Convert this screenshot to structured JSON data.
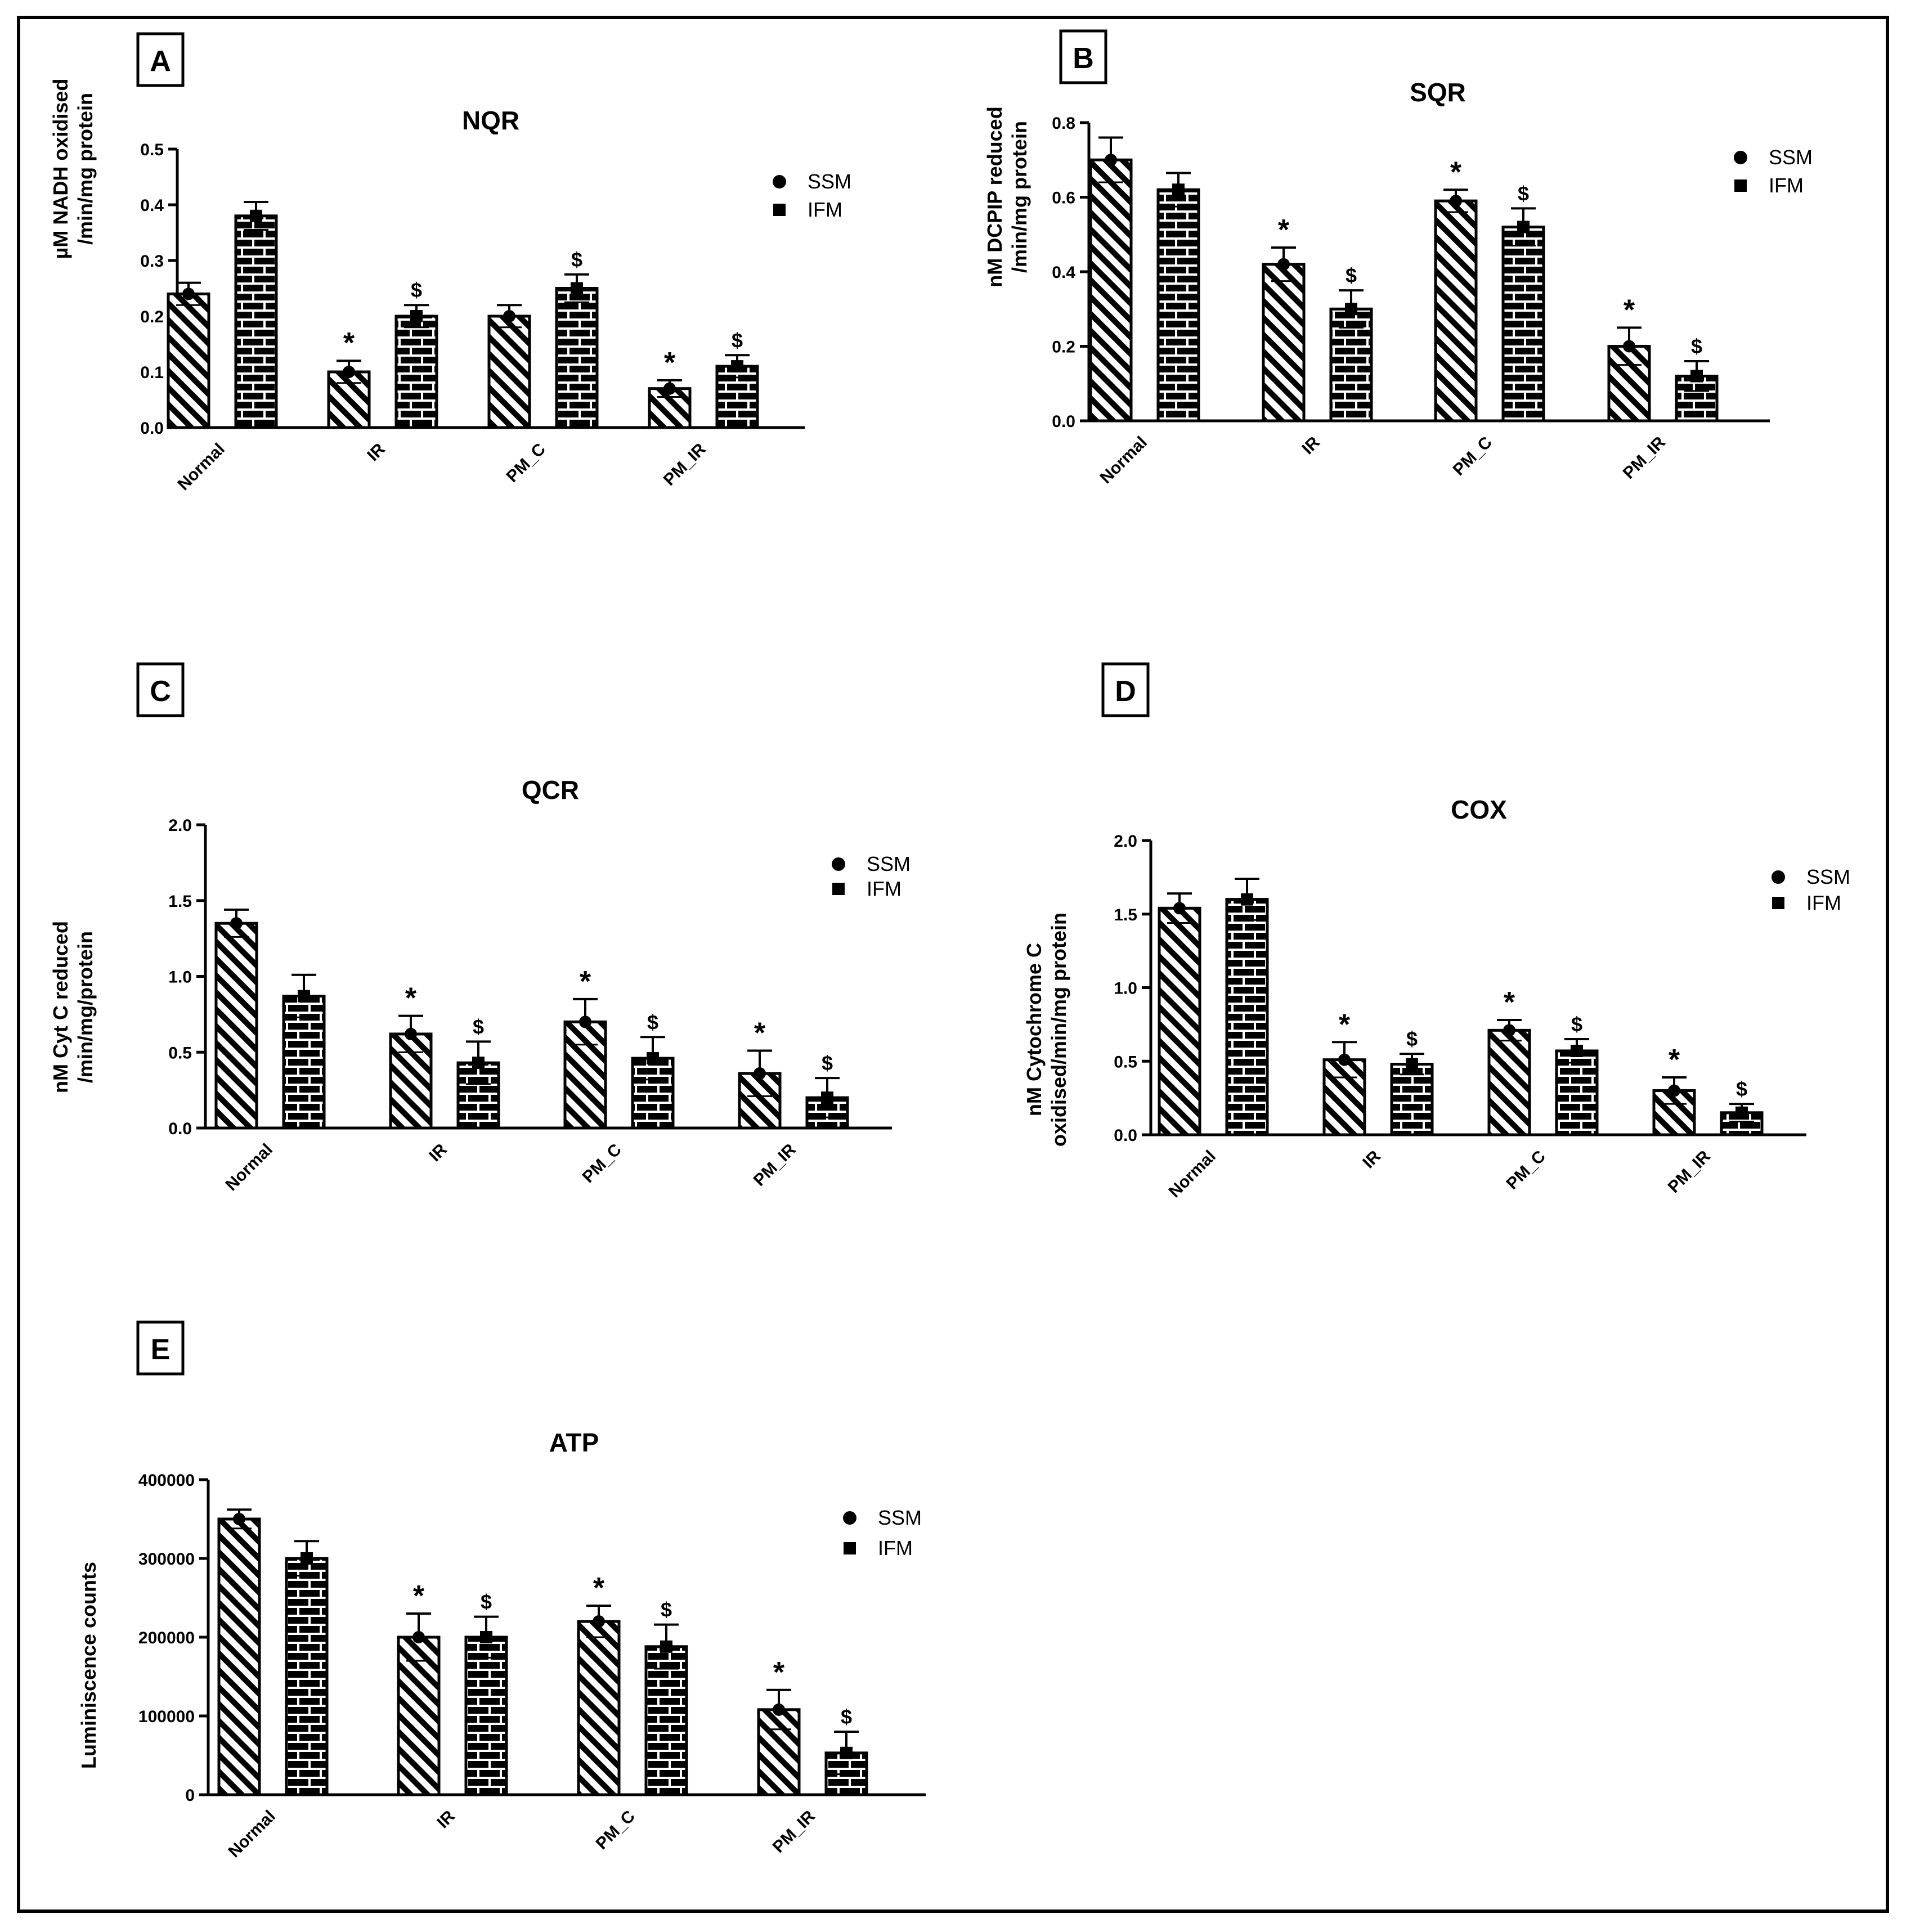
{
  "figure": {
    "panels": [
      "A",
      "B",
      "C",
      "D",
      "E"
    ]
  },
  "chart_data": [
    {
      "panel": "A",
      "type": "bar",
      "title": "NQR",
      "ylabel_lines": [
        "µM NADH oxidised",
        "/min/mg protein"
      ],
      "categories": [
        "Normal",
        "IR",
        "PM_C",
        "PM_IR"
      ],
      "yticks": [
        "0.0",
        "0.1",
        "0.2",
        "0.3",
        "0.4",
        "0.5"
      ],
      "ylim": [
        0,
        0.5
      ],
      "legend": [
        "SSM",
        "IFM"
      ],
      "series": [
        {
          "name": "SSM",
          "values": [
            0.24,
            0.1,
            0.2,
            0.07
          ],
          "errors": [
            0.02,
            0.02,
            0.02,
            0.015
          ],
          "marks": [
            "",
            "*",
            "",
            "*"
          ]
        },
        {
          "name": "IFM",
          "values": [
            0.38,
            0.2,
            0.25,
            0.11
          ],
          "errors": [
            0.025,
            0.02,
            0.025,
            0.02
          ],
          "marks": [
            "",
            "$",
            "$",
            "$"
          ]
        }
      ]
    },
    {
      "panel": "B",
      "type": "bar",
      "title": "SQR",
      "ylabel_lines": [
        "nM DCPIP reduced",
        "/min/mg protein"
      ],
      "categories": [
        "Normal",
        "IR",
        "PM_C",
        "PM_IR"
      ],
      "yticks": [
        "0.0",
        "0.2",
        "0.4",
        "0.6",
        "0.8"
      ],
      "ylim": [
        0,
        0.8
      ],
      "legend": [
        "SSM",
        "IFM"
      ],
      "series": [
        {
          "name": "SSM",
          "values": [
            0.7,
            0.42,
            0.59,
            0.2
          ],
          "errors": [
            0.06,
            0.045,
            0.03,
            0.05
          ],
          "marks": [
            "",
            "*",
            "*",
            "*"
          ]
        },
        {
          "name": "IFM",
          "values": [
            0.62,
            0.3,
            0.52,
            0.12
          ],
          "errors": [
            0.045,
            0.05,
            0.05,
            0.04
          ],
          "marks": [
            "",
            "$",
            "$",
            "$"
          ]
        }
      ]
    },
    {
      "panel": "C",
      "type": "bar",
      "title": "QCR",
      "ylabel_lines": [
        "nM Cyt C reduced",
        "/min/mg/protein"
      ],
      "categories": [
        "Normal",
        "IR",
        "PM_C",
        "PM_IR"
      ],
      "yticks": [
        "0.0",
        "0.5",
        "1.0",
        "1.5",
        "2.0"
      ],
      "ylim": [
        0,
        2.0
      ],
      "legend": [
        "SSM",
        "IFM"
      ],
      "series": [
        {
          "name": "SSM",
          "values": [
            1.35,
            0.62,
            0.7,
            0.36
          ],
          "errors": [
            0.09,
            0.12,
            0.15,
            0.15
          ],
          "marks": [
            "",
            "*",
            "*",
            "*"
          ]
        },
        {
          "name": "IFM",
          "values": [
            0.87,
            0.43,
            0.46,
            0.2
          ],
          "errors": [
            0.14,
            0.14,
            0.14,
            0.13
          ],
          "marks": [
            "",
            "$",
            "$",
            "$"
          ]
        }
      ]
    },
    {
      "panel": "D",
      "type": "bar",
      "title": "COX",
      "ylabel_lines": [
        "nM Cytochrome C",
        "oxidised/min/mg protein"
      ],
      "categories": [
        "Normal",
        "IR",
        "PM_C",
        "PM_IR"
      ],
      "yticks": [
        "0.0",
        "0.5",
        "1.0",
        "1.5",
        "2.0"
      ],
      "ylim": [
        0,
        2.0
      ],
      "legend": [
        "SSM",
        "IFM"
      ],
      "series": [
        {
          "name": "SSM",
          "values": [
            1.54,
            0.51,
            0.71,
            0.3
          ],
          "errors": [
            0.1,
            0.12,
            0.07,
            0.09
          ],
          "marks": [
            "",
            "*",
            "*",
            "*"
          ]
        },
        {
          "name": "IFM",
          "values": [
            1.6,
            0.48,
            0.57,
            0.15
          ],
          "errors": [
            0.14,
            0.07,
            0.08,
            0.06
          ],
          "marks": [
            "",
            "$",
            "$",
            "$"
          ]
        }
      ]
    },
    {
      "panel": "E",
      "type": "bar",
      "title": "ATP",
      "ylabel_lines": [
        "Luminiscence counts"
      ],
      "categories": [
        "Normal",
        "IR",
        "PM_C",
        "PM_IR"
      ],
      "yticks": [
        "0",
        "100000",
        "200000",
        "300000",
        "400000"
      ],
      "ylim": [
        0,
        400000
      ],
      "legend": [
        "SSM",
        "IFM"
      ],
      "series": [
        {
          "name": "SSM",
          "values": [
            350000,
            200000,
            220000,
            108000
          ],
          "errors": [
            12000,
            30000,
            20000,
            25000
          ],
          "marks": [
            "",
            "*",
            "*",
            "*"
          ]
        },
        {
          "name": "IFM",
          "values": [
            300000,
            200000,
            188000,
            53000
          ],
          "errors": [
            22000,
            26000,
            28000,
            27000
          ],
          "marks": [
            "",
            "$",
            "$",
            "$"
          ]
        }
      ]
    }
  ]
}
